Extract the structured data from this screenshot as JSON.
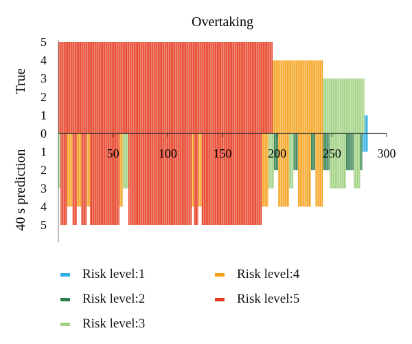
{
  "chart_data": {
    "type": "bar",
    "title": "Overtaking",
    "x_ticks": [
      "50",
      "100",
      "150",
      "200",
      "250",
      "300"
    ],
    "xlim": [
      0,
      300
    ],
    "panels": [
      {
        "name": "true",
        "label": "True",
        "direction": "up",
        "ylim": [
          0,
          5
        ],
        "y_ticks": [
          "0",
          "1",
          "2",
          "3",
          "4",
          "5"
        ]
      },
      {
        "name": "prediction",
        "label": "40 s prediction",
        "direction": "down",
        "ylim": [
          0,
          5
        ],
        "y_ticks": [
          "1",
          "2",
          "3",
          "4",
          "5"
        ]
      }
    ],
    "legend_position": "bottom",
    "series": [
      {
        "name": "Risk level:1",
        "level": 1,
        "color": "#2eaee3"
      },
      {
        "name": "Risk level:2",
        "level": 2,
        "color": "#2e7d4c"
      },
      {
        "name": "Risk level:3",
        "level": 3,
        "color": "#9ed07f"
      },
      {
        "name": "Risk level:4",
        "level": 4,
        "color": "#f4a11a"
      },
      {
        "name": "Risk level:5",
        "level": 5,
        "color": "#e63a1e"
      }
    ],
    "true_segments": [
      {
        "from": 1,
        "to": 196,
        "level": 5
      },
      {
        "from": 197,
        "to": 242,
        "level": 4
      },
      {
        "from": 243,
        "to": 280,
        "level": 3
      },
      {
        "from": 281,
        "to": 283,
        "level": 1
      }
    ],
    "prediction_segments": [
      {
        "from": 1,
        "to": 2,
        "level": 3
      },
      {
        "from": 3,
        "to": 8,
        "level": 5
      },
      {
        "from": 9,
        "to": 13,
        "level": 4
      },
      {
        "from": 14,
        "to": 17,
        "level": 5
      },
      {
        "from": 18,
        "to": 21,
        "level": 4
      },
      {
        "from": 22,
        "to": 26,
        "level": 5
      },
      {
        "from": 27,
        "to": 29,
        "level": 4
      },
      {
        "from": 30,
        "to": 56,
        "level": 5
      },
      {
        "from": 57,
        "to": 59,
        "level": 4
      },
      {
        "from": 60,
        "to": 64,
        "level": 3
      },
      {
        "from": 65,
        "to": 122,
        "level": 5
      },
      {
        "from": 123,
        "to": 124,
        "level": 4
      },
      {
        "from": 125,
        "to": 128,
        "level": 5
      },
      {
        "from": 129,
        "to": 131,
        "level": 4
      },
      {
        "from": 132,
        "to": 186,
        "level": 5
      },
      {
        "from": 187,
        "to": 192,
        "level": 4
      },
      {
        "from": 193,
        "to": 197,
        "level": 3
      },
      {
        "from": 198,
        "to": 201,
        "level": 2
      },
      {
        "from": 202,
        "to": 211,
        "level": 4
      },
      {
        "from": 212,
        "to": 215,
        "level": 3
      },
      {
        "from": 216,
        "to": 219,
        "level": 2
      },
      {
        "from": 220,
        "to": 231,
        "level": 4
      },
      {
        "from": 232,
        "to": 235,
        "level": 2
      },
      {
        "from": 236,
        "to": 242,
        "level": 4
      },
      {
        "from": 243,
        "to": 248,
        "level": 2
      },
      {
        "from": 249,
        "to": 263,
        "level": 3
      },
      {
        "from": 264,
        "to": 270,
        "level": 2
      },
      {
        "from": 271,
        "to": 276,
        "level": 3
      },
      {
        "from": 277,
        "to": 278,
        "level": 2
      },
      {
        "from": 279,
        "to": 283,
        "level": 1
      }
    ]
  }
}
